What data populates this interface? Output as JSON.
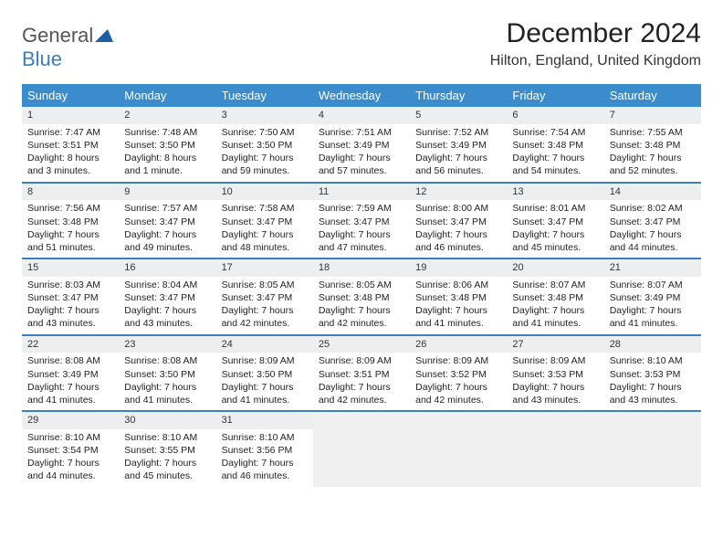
{
  "logo": {
    "part1": "General",
    "part2": "Blue"
  },
  "title": "December 2024",
  "location": "Hilton, England, United Kingdom",
  "colors": {
    "header_bg": "#3a8ccc",
    "header_text": "#ffffff",
    "daynum_bg": "#eceeef",
    "row_divider": "#3a7fbf",
    "logo_gray": "#555555",
    "logo_blue": "#3a7fbf",
    "empty_bg": "#f0f0f0"
  },
  "day_headers": [
    "Sunday",
    "Monday",
    "Tuesday",
    "Wednesday",
    "Thursday",
    "Friday",
    "Saturday"
  ],
  "weeks": [
    [
      {
        "n": "1",
        "sunrise": "Sunrise: 7:47 AM",
        "sunset": "Sunset: 3:51 PM",
        "daylight": "Daylight: 8 hours and 3 minutes."
      },
      {
        "n": "2",
        "sunrise": "Sunrise: 7:48 AM",
        "sunset": "Sunset: 3:50 PM",
        "daylight": "Daylight: 8 hours and 1 minute."
      },
      {
        "n": "3",
        "sunrise": "Sunrise: 7:50 AM",
        "sunset": "Sunset: 3:50 PM",
        "daylight": "Daylight: 7 hours and 59 minutes."
      },
      {
        "n": "4",
        "sunrise": "Sunrise: 7:51 AM",
        "sunset": "Sunset: 3:49 PM",
        "daylight": "Daylight: 7 hours and 57 minutes."
      },
      {
        "n": "5",
        "sunrise": "Sunrise: 7:52 AM",
        "sunset": "Sunset: 3:49 PM",
        "daylight": "Daylight: 7 hours and 56 minutes."
      },
      {
        "n": "6",
        "sunrise": "Sunrise: 7:54 AM",
        "sunset": "Sunset: 3:48 PM",
        "daylight": "Daylight: 7 hours and 54 minutes."
      },
      {
        "n": "7",
        "sunrise": "Sunrise: 7:55 AM",
        "sunset": "Sunset: 3:48 PM",
        "daylight": "Daylight: 7 hours and 52 minutes."
      }
    ],
    [
      {
        "n": "8",
        "sunrise": "Sunrise: 7:56 AM",
        "sunset": "Sunset: 3:48 PM",
        "daylight": "Daylight: 7 hours and 51 minutes."
      },
      {
        "n": "9",
        "sunrise": "Sunrise: 7:57 AM",
        "sunset": "Sunset: 3:47 PM",
        "daylight": "Daylight: 7 hours and 49 minutes."
      },
      {
        "n": "10",
        "sunrise": "Sunrise: 7:58 AM",
        "sunset": "Sunset: 3:47 PM",
        "daylight": "Daylight: 7 hours and 48 minutes."
      },
      {
        "n": "11",
        "sunrise": "Sunrise: 7:59 AM",
        "sunset": "Sunset: 3:47 PM",
        "daylight": "Daylight: 7 hours and 47 minutes."
      },
      {
        "n": "12",
        "sunrise": "Sunrise: 8:00 AM",
        "sunset": "Sunset: 3:47 PM",
        "daylight": "Daylight: 7 hours and 46 minutes."
      },
      {
        "n": "13",
        "sunrise": "Sunrise: 8:01 AM",
        "sunset": "Sunset: 3:47 PM",
        "daylight": "Daylight: 7 hours and 45 minutes."
      },
      {
        "n": "14",
        "sunrise": "Sunrise: 8:02 AM",
        "sunset": "Sunset: 3:47 PM",
        "daylight": "Daylight: 7 hours and 44 minutes."
      }
    ],
    [
      {
        "n": "15",
        "sunrise": "Sunrise: 8:03 AM",
        "sunset": "Sunset: 3:47 PM",
        "daylight": "Daylight: 7 hours and 43 minutes."
      },
      {
        "n": "16",
        "sunrise": "Sunrise: 8:04 AM",
        "sunset": "Sunset: 3:47 PM",
        "daylight": "Daylight: 7 hours and 43 minutes."
      },
      {
        "n": "17",
        "sunrise": "Sunrise: 8:05 AM",
        "sunset": "Sunset: 3:47 PM",
        "daylight": "Daylight: 7 hours and 42 minutes."
      },
      {
        "n": "18",
        "sunrise": "Sunrise: 8:05 AM",
        "sunset": "Sunset: 3:48 PM",
        "daylight": "Daylight: 7 hours and 42 minutes."
      },
      {
        "n": "19",
        "sunrise": "Sunrise: 8:06 AM",
        "sunset": "Sunset: 3:48 PM",
        "daylight": "Daylight: 7 hours and 41 minutes."
      },
      {
        "n": "20",
        "sunrise": "Sunrise: 8:07 AM",
        "sunset": "Sunset: 3:48 PM",
        "daylight": "Daylight: 7 hours and 41 minutes."
      },
      {
        "n": "21",
        "sunrise": "Sunrise: 8:07 AM",
        "sunset": "Sunset: 3:49 PM",
        "daylight": "Daylight: 7 hours and 41 minutes."
      }
    ],
    [
      {
        "n": "22",
        "sunrise": "Sunrise: 8:08 AM",
        "sunset": "Sunset: 3:49 PM",
        "daylight": "Daylight: 7 hours and 41 minutes."
      },
      {
        "n": "23",
        "sunrise": "Sunrise: 8:08 AM",
        "sunset": "Sunset: 3:50 PM",
        "daylight": "Daylight: 7 hours and 41 minutes."
      },
      {
        "n": "24",
        "sunrise": "Sunrise: 8:09 AM",
        "sunset": "Sunset: 3:50 PM",
        "daylight": "Daylight: 7 hours and 41 minutes."
      },
      {
        "n": "25",
        "sunrise": "Sunrise: 8:09 AM",
        "sunset": "Sunset: 3:51 PM",
        "daylight": "Daylight: 7 hours and 42 minutes."
      },
      {
        "n": "26",
        "sunrise": "Sunrise: 8:09 AM",
        "sunset": "Sunset: 3:52 PM",
        "daylight": "Daylight: 7 hours and 42 minutes."
      },
      {
        "n": "27",
        "sunrise": "Sunrise: 8:09 AM",
        "sunset": "Sunset: 3:53 PM",
        "daylight": "Daylight: 7 hours and 43 minutes."
      },
      {
        "n": "28",
        "sunrise": "Sunrise: 8:10 AM",
        "sunset": "Sunset: 3:53 PM",
        "daylight": "Daylight: 7 hours and 43 minutes."
      }
    ],
    [
      {
        "n": "29",
        "sunrise": "Sunrise: 8:10 AM",
        "sunset": "Sunset: 3:54 PM",
        "daylight": "Daylight: 7 hours and 44 minutes."
      },
      {
        "n": "30",
        "sunrise": "Sunrise: 8:10 AM",
        "sunset": "Sunset: 3:55 PM",
        "daylight": "Daylight: 7 hours and 45 minutes."
      },
      {
        "n": "31",
        "sunrise": "Sunrise: 8:10 AM",
        "sunset": "Sunset: 3:56 PM",
        "daylight": "Daylight: 7 hours and 46 minutes."
      },
      null,
      null,
      null,
      null
    ]
  ]
}
